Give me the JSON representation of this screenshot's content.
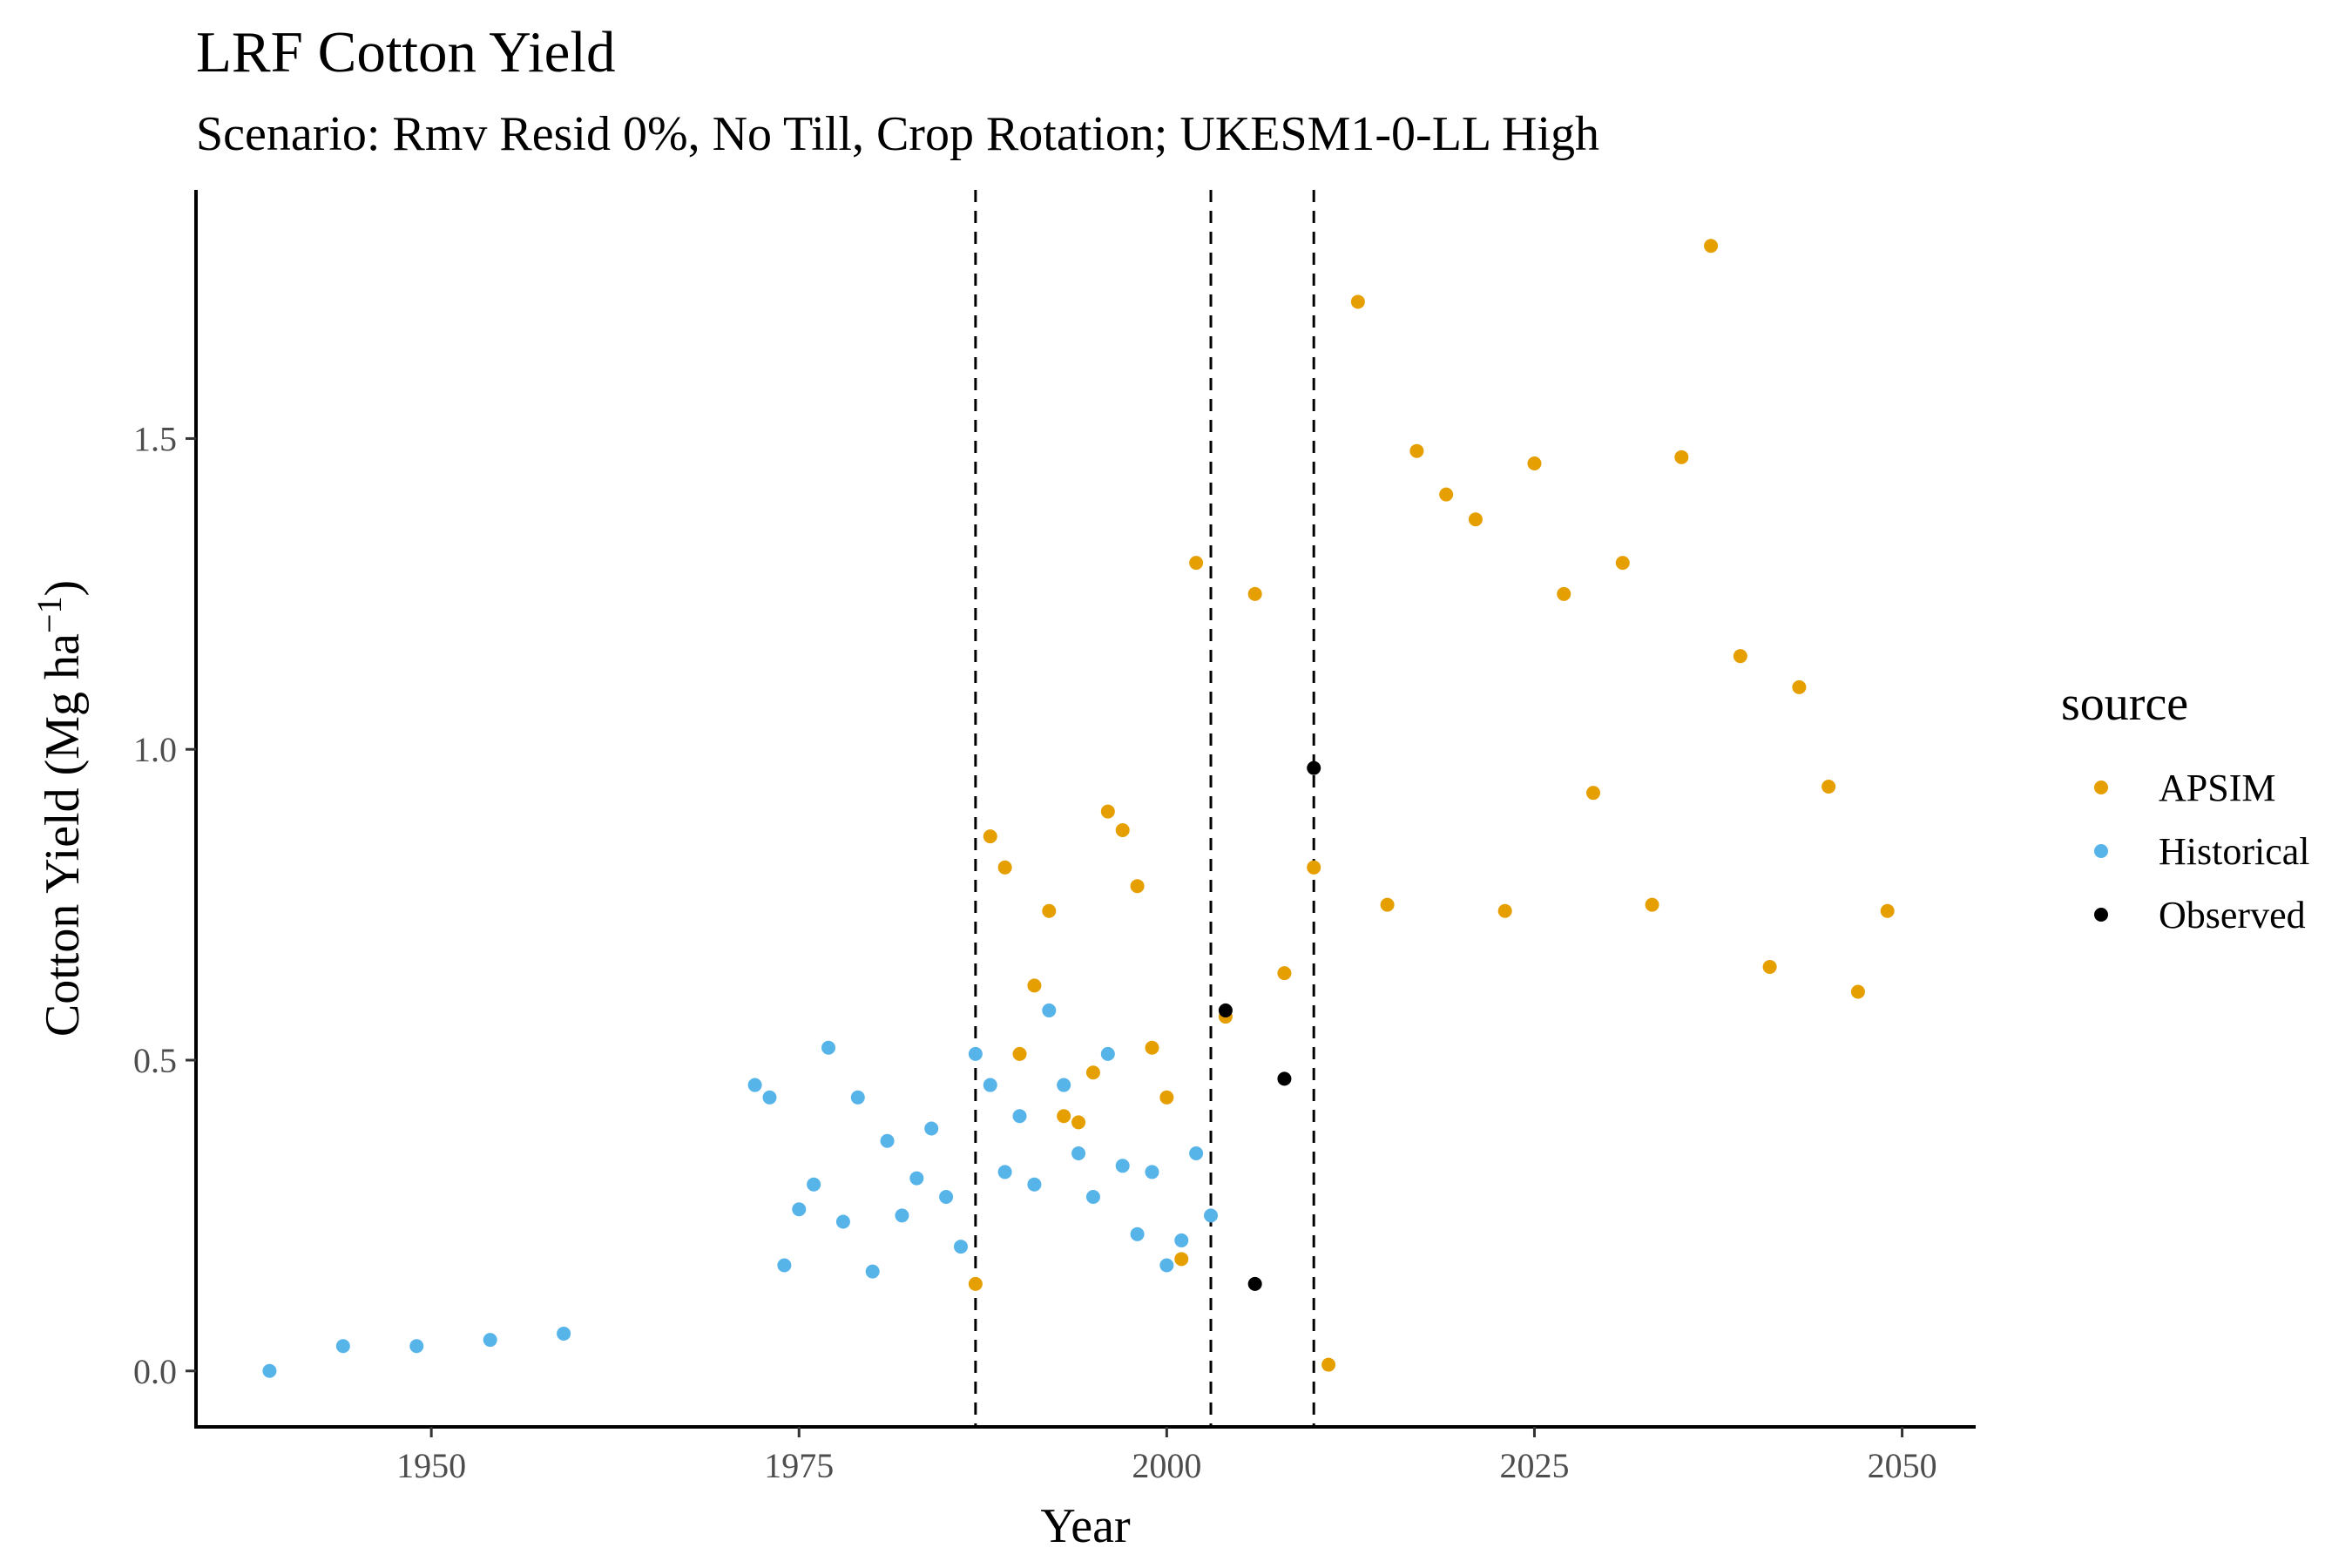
{
  "chart_data": {
    "type": "scatter",
    "title": "LRF Cotton Yield",
    "subtitle": "Scenario: Rmv Resid 0%, No Till, Crop Rotation; UKESM1-0-LL High",
    "xlabel": "Year",
    "ylabel_main": "Cotton Yield (Mg ha",
    "ylabel_sup": "−1",
    "ylabel_close": ")",
    "xlim": [
      1934,
      2055
    ],
    "ylim": [
      -0.09,
      1.9
    ],
    "xticks": [
      1950,
      1975,
      2000,
      2025,
      2050
    ],
    "yticks": [
      0.0,
      0.5,
      1.0,
      1.5
    ],
    "ytick_labels": [
      "0.0",
      "0.5",
      "1.0",
      "1.5"
    ],
    "vlines": [
      1987,
      2003,
      2010
    ],
    "grid": false,
    "legend": {
      "title": "source",
      "position": "right"
    },
    "series": [
      {
        "name": "APSIM",
        "color": "#E69F00",
        "points": [
          [
            1987,
            0.14
          ],
          [
            1988,
            0.86
          ],
          [
            1989,
            0.81
          ],
          [
            1990,
            0.51
          ],
          [
            1991,
            0.62
          ],
          [
            1992,
            0.74
          ],
          [
            1993,
            0.41
          ],
          [
            1994,
            0.4
          ],
          [
            1995,
            0.48
          ],
          [
            1996,
            0.9
          ],
          [
            1997,
            0.87
          ],
          [
            1998,
            0.78
          ],
          [
            1999,
            0.52
          ],
          [
            2000,
            0.44
          ],
          [
            2001,
            0.18
          ],
          [
            2002,
            1.3
          ],
          [
            2004,
            0.57
          ],
          [
            2006,
            1.25
          ],
          [
            2008,
            0.64
          ],
          [
            2010,
            0.81
          ],
          [
            2011,
            0.01
          ],
          [
            2013,
            1.72
          ],
          [
            2015,
            0.75
          ],
          [
            2017,
            1.48
          ],
          [
            2019,
            1.41
          ],
          [
            2021,
            1.37
          ],
          [
            2023,
            0.74
          ],
          [
            2025,
            1.46
          ],
          [
            2027,
            1.25
          ],
          [
            2029,
            0.93
          ],
          [
            2031,
            1.3
          ],
          [
            2033,
            0.75
          ],
          [
            2035,
            1.47
          ],
          [
            2037,
            1.81
          ],
          [
            2039,
            1.15
          ],
          [
            2041,
            0.65
          ],
          [
            2043,
            1.1
          ],
          [
            2045,
            0.94
          ],
          [
            2047,
            0.61
          ],
          [
            2049,
            0.74
          ]
        ]
      },
      {
        "name": "Historical",
        "color": "#56B4E9",
        "points": [
          [
            1939,
            0.0
          ],
          [
            1944,
            0.04
          ],
          [
            1949,
            0.04
          ],
          [
            1954,
            0.05
          ],
          [
            1959,
            0.06
          ],
          [
            1972,
            0.46
          ],
          [
            1973,
            0.44
          ],
          [
            1974,
            0.17
          ],
          [
            1975,
            0.26
          ],
          [
            1976,
            0.3
          ],
          [
            1977,
            0.52
          ],
          [
            1978,
            0.24
          ],
          [
            1979,
            0.44
          ],
          [
            1980,
            0.16
          ],
          [
            1981,
            0.37
          ],
          [
            1982,
            0.25
          ],
          [
            1983,
            0.31
          ],
          [
            1984,
            0.39
          ],
          [
            1985,
            0.28
          ],
          [
            1986,
            0.2
          ],
          [
            1987,
            0.51
          ],
          [
            1988,
            0.46
          ],
          [
            1989,
            0.32
          ],
          [
            1990,
            0.41
          ],
          [
            1991,
            0.3
          ],
          [
            1992,
            0.58
          ],
          [
            1993,
            0.46
          ],
          [
            1994,
            0.35
          ],
          [
            1995,
            0.28
          ],
          [
            1996,
            0.51
          ],
          [
            1997,
            0.33
          ],
          [
            1998,
            0.22
          ],
          [
            1999,
            0.32
          ],
          [
            2000,
            0.17
          ],
          [
            2001,
            0.21
          ],
          [
            2002,
            0.35
          ],
          [
            2003,
            0.25
          ]
        ]
      },
      {
        "name": "Observed",
        "color": "#000000",
        "points": [
          [
            2004,
            0.58
          ],
          [
            2006,
            0.14
          ],
          [
            2008,
            0.47
          ],
          [
            2010,
            0.97
          ]
        ]
      }
    ]
  }
}
